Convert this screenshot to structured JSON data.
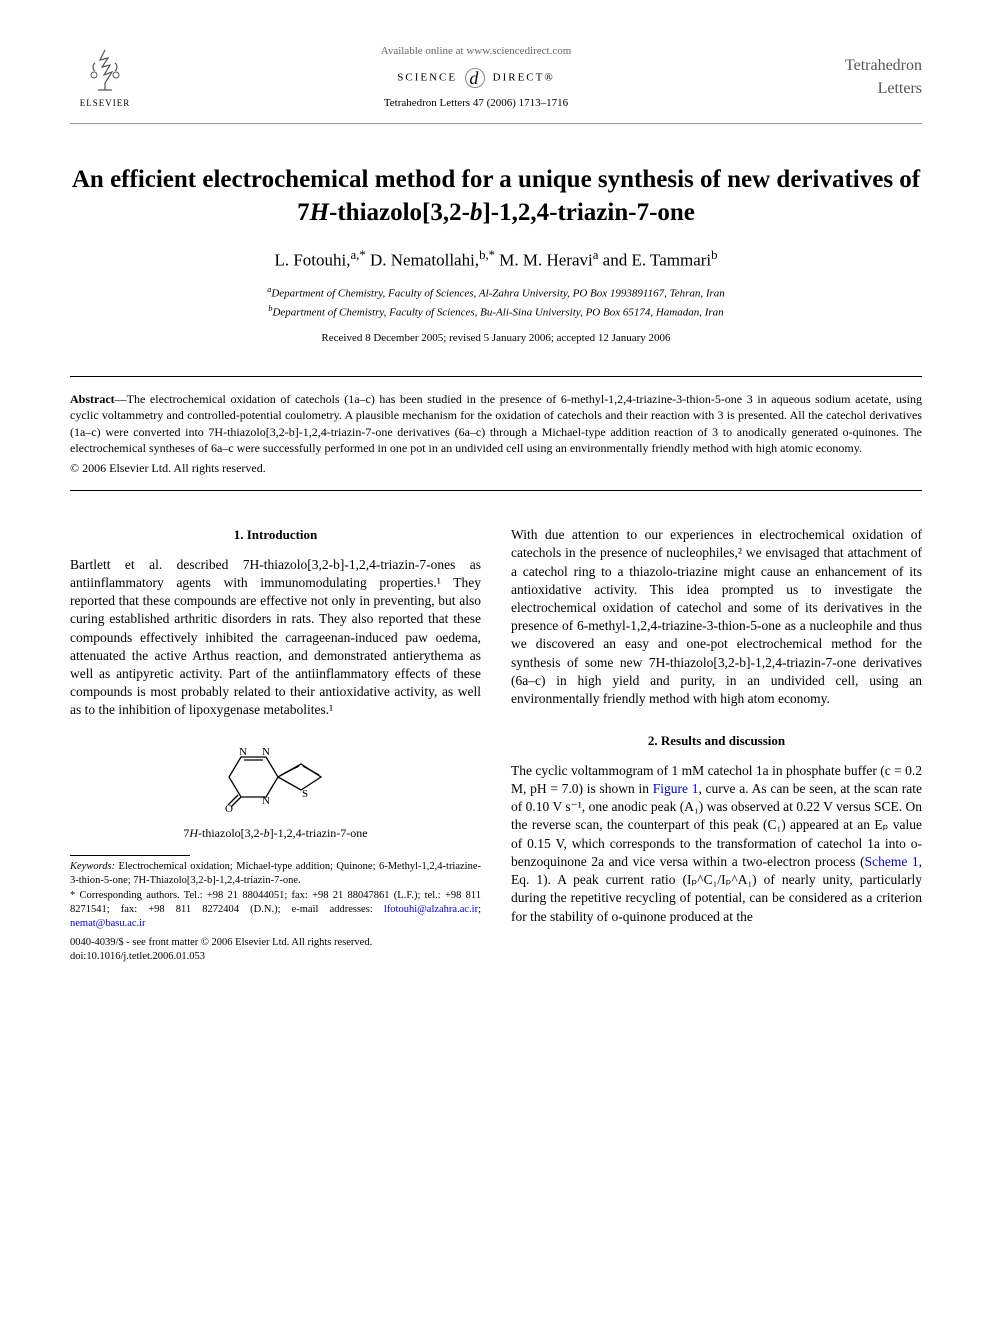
{
  "header": {
    "elsevier": "ELSEVIER",
    "available": "Available online at www.sciencedirect.com",
    "sd_left": "SCIENCE",
    "sd_right": "DIRECT®",
    "journal_ref": "Tetrahedron Letters 47 (2006) 1713–1716",
    "brand_line1": "Tetrahedron",
    "brand_line2": "Letters"
  },
  "title": "An efficient electrochemical method for a unique synthesis of new derivatives of 7H-thiazolo[3,2-b]-1,2,4-triazin-7-one",
  "title_parts": {
    "pre": "An efficient electrochemical method for a unique synthesis of new derivatives of 7",
    "italic1": "H",
    "mid": "-thiazolo[3,2-",
    "italic2": "b",
    "post": "]-1,2,4-triazin-7-one"
  },
  "authors_html": "L. Fotouhi,<sup>a,*</sup> D. Nematollahi,<sup>b,*</sup> M. M. Heravi<sup>a</sup> and E. Tammari<sup>b</sup>",
  "affiliations": {
    "a": "Department of Chemistry, Faculty of Sciences, Al-Zahra University, PO Box 1993891167, Tehran, Iran",
    "b": "Department of Chemistry, Faculty of Sciences, Bu-Ali-Sina University, PO Box 65174, Hamadan, Iran"
  },
  "dates": "Received 8 December 2005; revised 5 January 2006; accepted 12 January 2006",
  "abstract": {
    "label": "Abstract",
    "text": "—The electrochemical oxidation of catechols (1a–c) has been studied in the presence of 6-methyl-1,2,4-triazine-3-thion-5-one 3 in aqueous sodium acetate, using cyclic voltammetry and controlled-potential coulometry. A plausible mechanism for the oxidation of catechols and their reaction with 3 is presented. All the catechol derivatives (1a–c) were converted into 7H-thiazolo[3,2-b]-1,2,4-triazin-7-one derivatives (6a–c) through a Michael-type addition reaction of 3 to anodically generated o-quinones. The electrochemical syntheses of 6a–c were successfully performed in one pot in an undivided cell using an environmentally friendly method with high atomic economy."
  },
  "copyright": "© 2006 Elsevier Ltd. All rights reserved.",
  "sections": {
    "intro_heading": "1. Introduction",
    "intro_p1": "Bartlett et al. described 7H-thiazolo[3,2-b]-1,2,4-triazin-7-ones as antiinflammatory agents with immunomodulating properties.¹ They reported that these compounds are effective not only in preventing, but also curing established arthritic disorders in rats. They also reported that these compounds effectively inhibited the carrageenan-induced paw oedema, attenuated the active Arthus reaction, and demonstrated antierythema as well as antipyretic activity. Part of the antiinflammatory effects of these compounds is most probably related to their antioxidative activity, as well as to the inhibition of lipoxygenase metabolites.¹",
    "chem_caption": "7H-thiazolo[3,2-b]-1,2,4-triazin-7-one",
    "col2_p1": "With due attention to our experiences in electrochemical oxidation of catechols in the presence of nucleophiles,² we envisaged that attachment of a catechol ring to a thiazolo-triazine might cause an enhancement of its antioxidative activity. This idea prompted us to investigate the electrochemical oxidation of catechol and some of its derivatives in the presence of 6-methyl-1,2,4-triazine-3-thion-5-one as a nucleophile and thus we discovered an easy and one-pot electrochemical method for the synthesis of some new 7H-thiazolo[3,2-b]-1,2,4-triazin-7-one derivatives (6a–c) in high yield and purity, in an undivided cell, using an environmentally friendly method with high atom economy.",
    "results_heading": "2. Results and discussion",
    "results_p1_pre": "The cyclic voltammogram of 1 mM catechol 1a in phosphate buffer (c = 0.2 M, pH = 7.0) is shown in ",
    "results_fig_link": "Figure 1",
    "results_p1_mid": ", curve a. As can be seen, at the scan rate of 0.10 V s⁻¹, one anodic peak (A₁) was observed at 0.22 V versus SCE. On the reverse scan, the counterpart of this peak (C₁) appeared at an Eₚ value of 0.15 V, which corresponds to the transformation of catechol 1a into o-benzoquinone 2a and vice versa within a two-electron process (",
    "results_scheme_link": "Scheme 1",
    "results_p1_post": ", Eq. 1). A peak current ratio (Iₚ^C₁/Iₚ^A₁) of nearly unity, particularly during the repetitive recycling of potential, can be considered as a criterion for the stability of o-quinone produced at the"
  },
  "keywords": {
    "label": "Keywords:",
    "text": " Electrochemical oxidation; Michael-type addition; Quinone; 6-Methyl-1,2,4-triazine-3-thion-5-one; 7H-Thiazolo[3,2-b]-1,2,4-triazin-7-one."
  },
  "corresponding": {
    "label": "* Corresponding authors.",
    "text": " Tel.: +98 21 88044051; fax: +98 21 88047861 (L.F.); tel.: +98 811 8271541; fax: +98 811 8272404 (D.N.); e-mail addresses: ",
    "email1": "lfotouhi@alzahra.ac.ir",
    "sep": "; ",
    "email2": "nemat@basu.ac.ir"
  },
  "footer": {
    "line1": "0040-4039/$ - see front matter © 2006 Elsevier Ltd. All rights reserved.",
    "line2": "doi:10.1016/j.tetlet.2006.01.053"
  },
  "colors": {
    "link": "#0000cc",
    "text": "#000000",
    "rule_light": "#999999",
    "rule_dark": "#000000",
    "header_gray": "#666666",
    "brand_gray": "#555555"
  }
}
